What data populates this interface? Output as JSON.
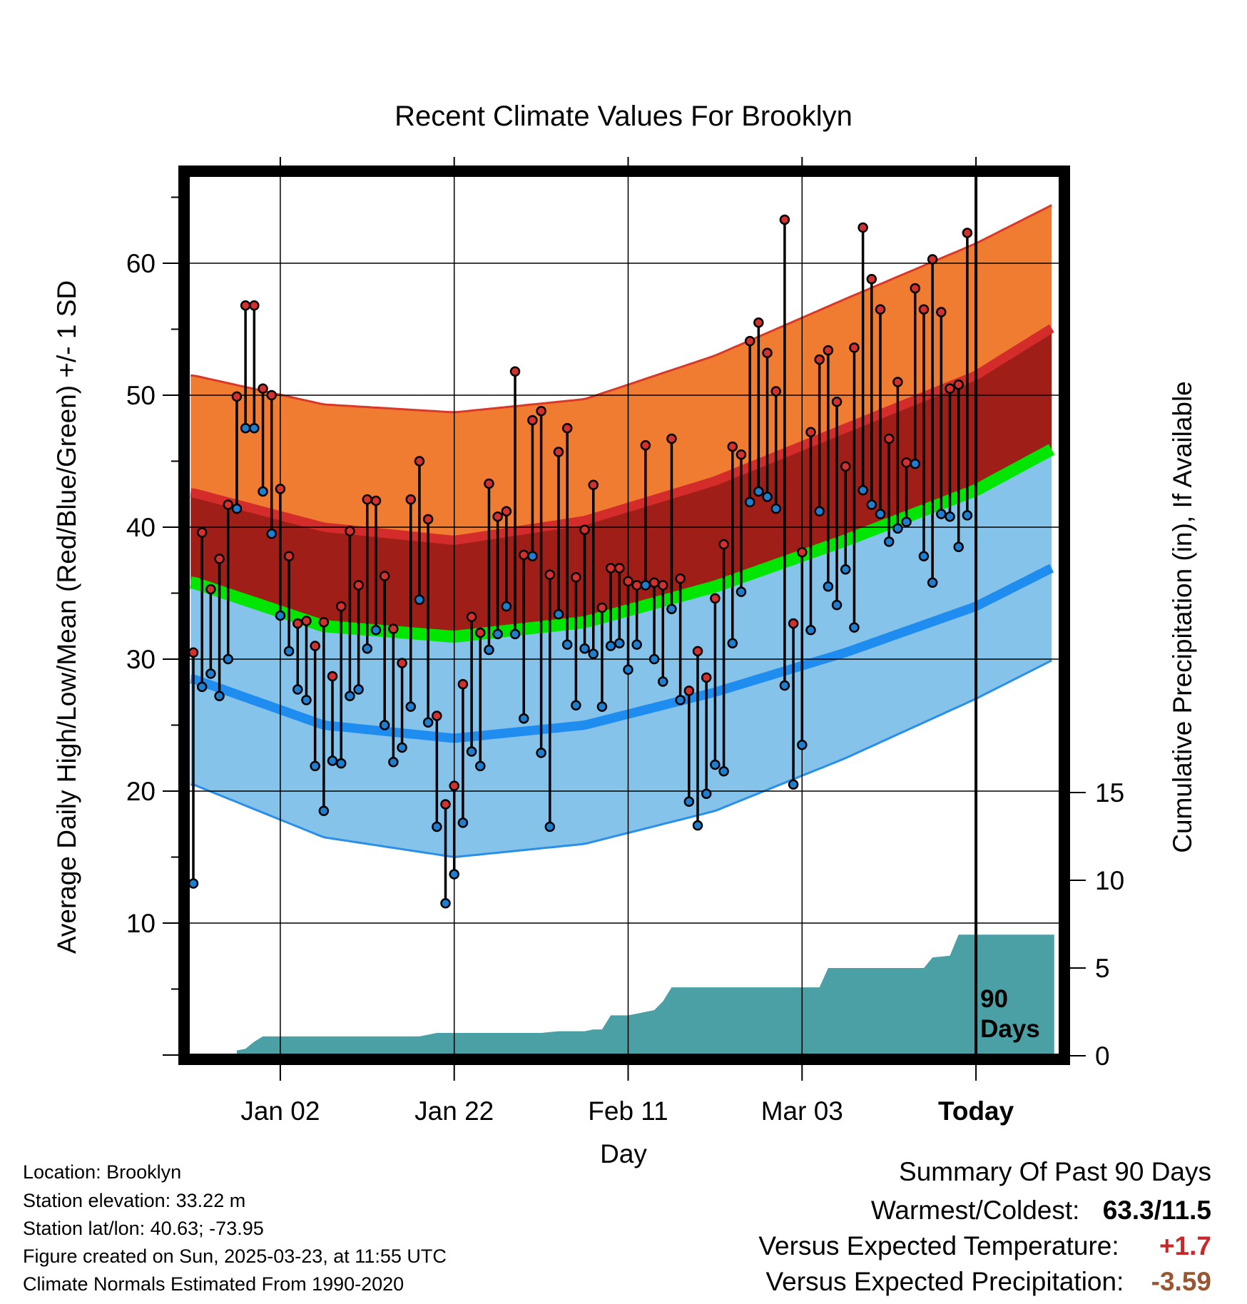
{
  "chart_data": {
    "type": "line",
    "title": "Recent Climate Values For Brooklyn",
    "xlabel": "Day",
    "ylabel": "Average Daily High/Low/Mean (Red/Blue/Green) +/- 1 SD",
    "y2label": "Cumulative Precipitation (in), If Available",
    "ylim": [
      0,
      68.3
    ],
    "y2lim": [
      0,
      20
    ],
    "yticks": [
      "10",
      "20",
      "30",
      "40",
      "50",
      "60"
    ],
    "y2ticks": [
      "0",
      "5",
      "10",
      "15"
    ],
    "x_tick_labels": [
      {
        "day": 10,
        "label": "Jan 02"
      },
      {
        "day": 30,
        "label": "Jan 22"
      },
      {
        "day": 50,
        "label": "Feb 11"
      },
      {
        "day": 70,
        "label": "Mar 03"
      },
      {
        "day": 90,
        "label": "Today"
      }
    ],
    "today_marker": "90\nDays",
    "grid": true,
    "normals": {
      "days": [
        0,
        15,
        30,
        45,
        60,
        75,
        90,
        99
      ],
      "high_mean": [
        42.6,
        40.0,
        39.0,
        40.5,
        43.5,
        47.5,
        51.5,
        55.2
      ],
      "high_sd_upper": [
        51.5,
        49.3,
        48.7,
        49.7,
        53.0,
        57.3,
        61.5,
        64.5
      ],
      "low_mean": [
        28.5,
        25.0,
        24.0,
        25.0,
        27.5,
        30.5,
        34.0,
        37.0
      ],
      "low_sd_lower": [
        20.5,
        16.5,
        15.0,
        16.0,
        18.5,
        22.5,
        27.0,
        30.0
      ],
      "mean": [
        35.8,
        32.5,
        31.7,
        32.8,
        35.5,
        39.0,
        42.8,
        46.0
      ]
    },
    "series": [
      {
        "name": "High",
        "color": "#d43030",
        "values": [
          30.5,
          39.6,
          35.3,
          37.6,
          41.7,
          49.9,
          56.8,
          56.8,
          50.5,
          50.0,
          42.9,
          37.8,
          32.7,
          32.9,
          31.0,
          32.8,
          28.7,
          34.0,
          39.7,
          35.6,
          42.1,
          42.0,
          36.3,
          32.3,
          29.7,
          42.1,
          45.0,
          40.6,
          25.7,
          19.0,
          20.4,
          28.1,
          33.2,
          32.0,
          43.3,
          40.8,
          41.2,
          51.8,
          37.9,
          48.1,
          48.8,
          36.4,
          45.7,
          47.5,
          36.2,
          39.8,
          43.2,
          33.9,
          36.9,
          36.9,
          35.9,
          35.6,
          46.2,
          35.8,
          35.6,
          46.7,
          36.1,
          27.6,
          30.6,
          28.6,
          34.6,
          38.7,
          46.1,
          45.5,
          54.1,
          55.5,
          53.2,
          50.3,
          63.3,
          32.7,
          38.1,
          47.2,
          52.7,
          53.4,
          49.5,
          44.6,
          53.6,
          62.7,
          58.8,
          56.5,
          46.7,
          51.0,
          44.9,
          58.1,
          56.5,
          60.3,
          56.3,
          50.5,
          50.8,
          62.3
        ]
      },
      {
        "name": "Low",
        "color": "#1e7fd0",
        "values": [
          13.0,
          27.9,
          28.9,
          27.2,
          30.0,
          41.4,
          47.5,
          47.5,
          42.7,
          39.5,
          33.3,
          30.6,
          27.7,
          26.9,
          21.9,
          18.5,
          22.3,
          22.1,
          27.2,
          27.7,
          30.8,
          32.2,
          25.0,
          22.2,
          23.3,
          26.4,
          34.5,
          25.2,
          17.3,
          11.5,
          13.7,
          17.6,
          23.0,
          21.9,
          30.7,
          31.9,
          34.0,
          31.9,
          25.5,
          37.8,
          22.9,
          17.3,
          33.4,
          31.1,
          26.5,
          30.8,
          30.4,
          26.4,
          31.0,
          31.2,
          29.2,
          31.1,
          35.6,
          30.0,
          28.3,
          33.8,
          26.9,
          19.2,
          17.4,
          19.8,
          22.0,
          21.5,
          31.2,
          35.1,
          41.9,
          42.7,
          42.3,
          41.4,
          28.0,
          20.5,
          23.5,
          32.2,
          41.2,
          35.5,
          34.1,
          36.8,
          32.4,
          42.8,
          41.7,
          41.0,
          38.9,
          39.9,
          40.4,
          44.8,
          37.8,
          35.8,
          41.0,
          40.8,
          38.5,
          40.9
        ]
      }
    ],
    "precipitation": {
      "name": "Cumulative Precipitation",
      "color": "#4aa0a5",
      "points": [
        [
          0,
          0
        ],
        [
          5,
          0
        ],
        [
          5,
          0.3
        ],
        [
          6,
          0.4
        ],
        [
          7,
          0.8
        ],
        [
          8,
          1.1
        ],
        [
          10,
          1.1
        ],
        [
          15,
          1.1
        ],
        [
          20,
          1.1
        ],
        [
          26,
          1.1
        ],
        [
          27,
          1.2
        ],
        [
          28,
          1.3
        ],
        [
          33,
          1.3
        ],
        [
          40,
          1.3
        ],
        [
          42,
          1.4
        ],
        [
          45,
          1.4
        ],
        [
          46,
          1.5
        ],
        [
          47,
          1.5
        ],
        [
          48,
          2.3
        ],
        [
          50,
          2.3
        ],
        [
          51,
          2.4
        ],
        [
          52,
          2.5
        ],
        [
          53,
          2.6
        ],
        [
          54,
          3.1
        ],
        [
          55,
          3.9
        ],
        [
          60,
          3.9
        ],
        [
          66,
          3.9
        ],
        [
          70,
          3.9
        ],
        [
          72,
          3.9
        ],
        [
          73,
          5.0
        ],
        [
          84,
          5.0
        ],
        [
          85,
          5.6
        ],
        [
          87,
          5.7
        ],
        [
          88,
          6.9
        ],
        [
          99,
          6.9
        ]
      ]
    }
  },
  "info": {
    "location": "Location: Brooklyn",
    "elevation": "Station elevation: 33.22 m",
    "latlon": "Station lat/lon: 40.63; -73.95",
    "created": "Figure created on Sun, 2025-03-23, at 11:55 UTC",
    "normals": "Climate Normals Estimated From 1990-2020"
  },
  "summary": {
    "title": "Summary Of Past 90 Days",
    "warmest_label": "Warmest/Coldest:",
    "warmest_value": "63.3/11.5",
    "temp_label": "Versus Expected Temperature:",
    "temp_value": "+1.7",
    "temp_color": "#c8282a",
    "precip_label": "Versus Expected Precipitation:",
    "precip_value": "-3.59",
    "precip_color": "#9a5630"
  }
}
